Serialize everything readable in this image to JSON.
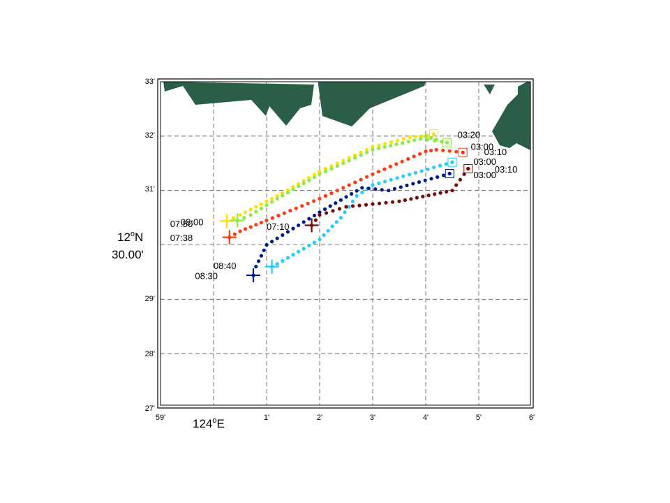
{
  "map": {
    "lat_ticks": [
      "27'",
      "28'",
      "29'",
      "31'",
      "32'",
      "33'"
    ],
    "lon_ticks": [
      "59'",
      "1'",
      "2'",
      "3'",
      "4'",
      "5'",
      "6'"
    ],
    "lat_center_label": {
      "deg": "12",
      "sup": "o",
      "hemi": "N",
      "min": "30.00'"
    },
    "lon_center_label": {
      "deg": "124",
      "sup": "o",
      "hemi": "E"
    },
    "land_color": "#2a5e47",
    "extent": {
      "lon_min_min": 59,
      "lon_max_min": 66,
      "lat_min_min": 27,
      "lat_max_min": 33
    }
  },
  "chart_data": {
    "type": "scatter",
    "xlabel": "124°E",
    "ylabel": "12°N 30.00'",
    "xlim_minutes_past_123": [
      59,
      66
    ],
    "ylim_minutes_past_12": [
      27,
      33
    ],
    "series": [
      {
        "color": "#ffe000",
        "start": {
          "time": "03:20",
          "lon": 64.15,
          "lat": 32.04
        },
        "end": {
          "time": "07:50",
          "lon": 60.25,
          "lat": 30.44
        },
        "path": [
          [
            64.15,
            32.02
          ],
          [
            63.7,
            31.98
          ],
          [
            63.0,
            31.8
          ],
          [
            62.0,
            31.35
          ],
          [
            61.3,
            30.95
          ],
          [
            60.5,
            30.55
          ],
          [
            60.25,
            30.44
          ]
        ]
      },
      {
        "color": "#88ee44",
        "start": {
          "time": "03:00",
          "lon": 64.4,
          "lat": 31.88
        },
        "end": {
          "time": "08:00",
          "lon": 60.45,
          "lat": 30.45
        },
        "path": [
          [
            64.0,
            32.0
          ],
          [
            64.3,
            31.9
          ],
          [
            63.9,
            31.95
          ],
          [
            63.0,
            31.75
          ],
          [
            62.0,
            31.3
          ],
          [
            61.2,
            30.85
          ],
          [
            60.7,
            30.55
          ],
          [
            60.45,
            30.45
          ]
        ]
      },
      {
        "color": "#ff3a10",
        "start": {
          "time": "03:10",
          "lon": 64.7,
          "lat": 31.7
        },
        "end": {
          "time": "07:38",
          "lon": 60.3,
          "lat": 30.14
        },
        "path": [
          [
            64.7,
            31.7
          ],
          [
            64.2,
            31.75
          ],
          [
            64.0,
            31.72
          ],
          [
            63.0,
            31.3
          ],
          [
            62.0,
            30.85
          ],
          [
            61.0,
            30.45
          ],
          [
            60.5,
            30.25
          ],
          [
            60.3,
            30.14
          ]
        ]
      },
      {
        "color": "#22ccff",
        "start": {
          "time": "03:00",
          "lon": 64.5,
          "lat": 31.52
        },
        "end": {
          "time": "08:40",
          "lon": 61.1,
          "lat": 29.6
        },
        "path": [
          [
            64.5,
            31.52
          ],
          [
            63.0,
            31.1
          ],
          [
            62.7,
            30.9
          ],
          [
            62.4,
            30.5
          ],
          [
            62.0,
            30.1
          ],
          [
            61.2,
            29.65
          ],
          [
            61.1,
            29.6
          ]
        ]
      },
      {
        "color": "#001a90",
        "start": {
          "time": "03:10",
          "lon": 64.45,
          "lat": 31.31
        },
        "end": {
          "time": "08:30",
          "lon": 60.75,
          "lat": 29.44
        },
        "path": [
          [
            64.45,
            31.31
          ],
          [
            63.3,
            31.0
          ],
          [
            62.8,
            31.05
          ],
          [
            62.0,
            30.6
          ],
          [
            61.0,
            30.0
          ],
          [
            60.8,
            29.6
          ],
          [
            60.75,
            29.44
          ]
        ]
      },
      {
        "color": "#7a0a0a",
        "start": {
          "time": "03:00",
          "lon": 64.8,
          "lat": 31.4
        },
        "end": {
          "time": "07:10",
          "lon": 61.85,
          "lat": 30.36
        },
        "path": [
          [
            64.8,
            31.4
          ],
          [
            64.5,
            31.0
          ],
          [
            63.5,
            30.8
          ],
          [
            62.5,
            30.7
          ],
          [
            62.0,
            30.55
          ],
          [
            61.85,
            30.36
          ]
        ]
      }
    ],
    "time_labels": [
      {
        "text": "03:20",
        "lon": 64.6,
        "lat": 32.02
      },
      {
        "text": "03:00",
        "lon": 64.85,
        "lat": 31.8
      },
      {
        "text": "03:10",
        "lon": 65.1,
        "lat": 31.7
      },
      {
        "text": "03:00",
        "lon": 64.9,
        "lat": 31.52
      },
      {
        "text": "03:10",
        "lon": 65.3,
        "lat": 31.38
      },
      {
        "text": "03:00",
        "lon": 64.9,
        "lat": 31.28
      },
      {
        "text": "07:50",
        "lon": 59.18,
        "lat": 30.38
      },
      {
        "text": "08:00",
        "lon": 59.38,
        "lat": 30.41
      },
      {
        "text": "07:38",
        "lon": 59.18,
        "lat": 30.12
      },
      {
        "text": "07:10",
        "lon": 61.0,
        "lat": 30.33
      },
      {
        "text": "08:40",
        "lon": 60.0,
        "lat": 29.61
      },
      {
        "text": "08:30",
        "lon": 59.65,
        "lat": 29.42
      }
    ]
  }
}
